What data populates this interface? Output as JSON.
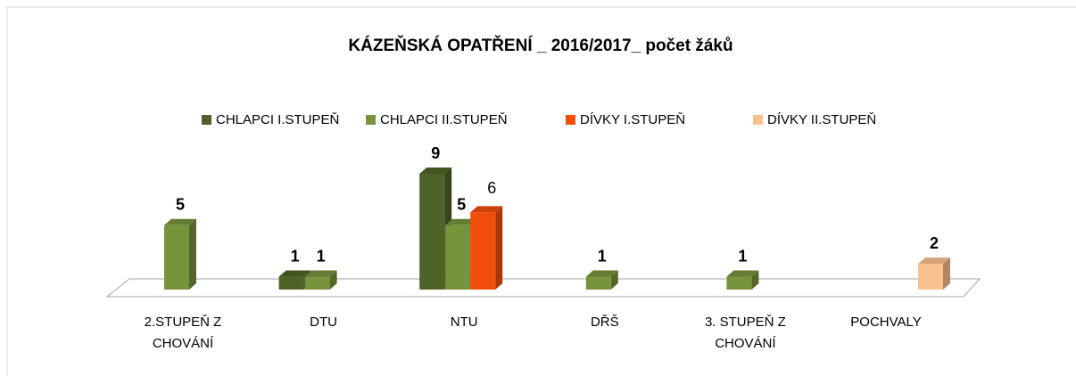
{
  "chart_data": {
    "type": "bar3d",
    "title": "KÁZEŇSKÁ OPATŘENÍ _ 2016/2017_ počet žáků",
    "categories": [
      "2.STUPEŇ Z CHOVÁNÍ",
      "DTU",
      "NTU",
      "DŘŠ",
      "3. STUPEŇ Z CHOVÁNÍ",
      "POCHVALY"
    ],
    "series": [
      {
        "name": "CHLAPCI I.STUPEŇ",
        "color": "#4f6228",
        "values": [
          null,
          1,
          9,
          null,
          null,
          null
        ]
      },
      {
        "name": "CHLAPCI II.STUPEŇ",
        "color": "#77933c",
        "values": [
          5,
          1,
          5,
          1,
          1,
          null
        ]
      },
      {
        "name": "DÍVKY I.STUPEŇ",
        "color": "#f24e0b",
        "values": [
          null,
          null,
          6,
          null,
          null,
          null
        ]
      },
      {
        "name": "DÍVKY II.STUPEŇ",
        "color": "#fac090",
        "values": [
          null,
          null,
          null,
          null,
          null,
          2
        ]
      }
    ],
    "legend": "top"
  }
}
